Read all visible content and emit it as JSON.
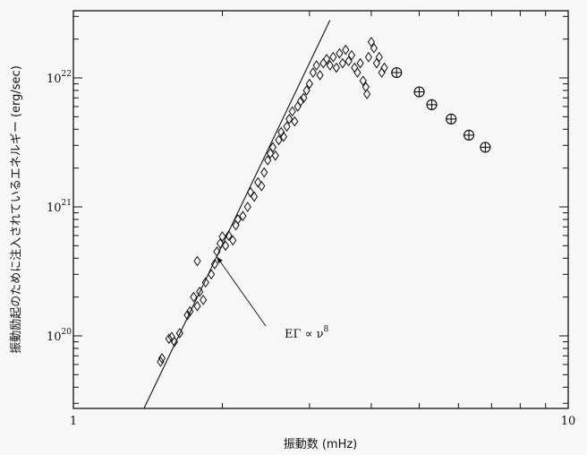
{
  "chart_data": {
    "type": "scatter",
    "title": "",
    "xlabel": "振動数 (mHz)",
    "ylabel": "振動励起のために注入されているエネルギー (erg/sec)",
    "xscale": "log",
    "yscale": "log",
    "xlim": [
      1,
      10
    ],
    "ylim": [
      3e+19,
      3e+22
    ],
    "x_ticks": [
      {
        "value": 1,
        "label": "1"
      },
      {
        "value": 10,
        "label": "10"
      }
    ],
    "y_ticks": [
      {
        "value": 1e+20,
        "base": "10",
        "exp": "20"
      },
      {
        "value": 1e+21,
        "base": "10",
        "exp": "21"
      },
      {
        "value": 1e+22,
        "base": "10",
        "exp": "22"
      }
    ],
    "grid": false,
    "series": [
      {
        "marker": "diamond",
        "points": [
          [
            1.5,
            6.3e+19
          ],
          [
            1.51,
            6.7e+19
          ],
          [
            1.56,
            9.5e+19
          ],
          [
            1.58,
            9.8e+19
          ],
          [
            1.6,
            9e+19
          ],
          [
            1.64,
            1.05e+20
          ],
          [
            1.7,
            1.45e+20
          ],
          [
            1.72,
            1.55e+20
          ],
          [
            1.75,
            2e+20
          ],
          [
            1.78,
            1.7e+20
          ],
          [
            1.8,
            2.2e+20
          ],
          [
            1.83,
            1.9e+20
          ],
          [
            1.85,
            2.6e+20
          ],
          [
            1.78,
            3.8e+20
          ],
          [
            1.9,
            3e+20
          ],
          [
            1.93,
            3.6e+20
          ],
          [
            1.95,
            4.5e+20
          ],
          [
            1.98,
            5.2e+20
          ],
          [
            2.0,
            5.9e+20
          ],
          [
            2.03,
            5e+20
          ],
          [
            2.06,
            6e+20
          ],
          [
            2.1,
            5.5e+20
          ],
          [
            2.13,
            7.2e+20
          ],
          [
            2.15,
            8e+20
          ],
          [
            2.2,
            8.5e+20
          ],
          [
            2.25,
            1e+21
          ],
          [
            2.28,
            1.3e+21
          ],
          [
            2.32,
            1.2e+21
          ],
          [
            2.36,
            1.55e+21
          ],
          [
            2.4,
            1.45e+21
          ],
          [
            2.43,
            1.85e+21
          ],
          [
            2.47,
            2.3e+21
          ],
          [
            2.5,
            2.6e+21
          ],
          [
            2.53,
            2.9e+21
          ],
          [
            2.56,
            2.5e+21
          ],
          [
            2.6,
            3.3e+21
          ],
          [
            2.63,
            3.8e+21
          ],
          [
            2.66,
            3.5e+21
          ],
          [
            2.7,
            4.2e+21
          ],
          [
            2.73,
            4.8e+21
          ],
          [
            2.77,
            5.5e+21
          ],
          [
            2.8,
            4.6e+21
          ],
          [
            2.84,
            6e+21
          ],
          [
            2.88,
            6.6e+21
          ],
          [
            2.92,
            7e+21
          ],
          [
            2.96,
            8e+21
          ],
          [
            3.0,
            9e+21
          ],
          [
            3.05,
            1.1e+22
          ],
          [
            3.1,
            1.25e+22
          ],
          [
            3.15,
            1.05e+22
          ],
          [
            3.2,
            1.3e+22
          ],
          [
            3.25,
            1.4e+22
          ],
          [
            3.3,
            1.25e+22
          ],
          [
            3.35,
            1.45e+22
          ],
          [
            3.4,
            1.2e+22
          ],
          [
            3.45,
            1.55e+22
          ],
          [
            3.5,
            1.3e+22
          ],
          [
            3.55,
            1.65e+22
          ],
          [
            3.6,
            1.35e+22
          ],
          [
            3.65,
            1.5e+22
          ],
          [
            3.7,
            1.2e+22
          ],
          [
            3.75,
            1.1e+22
          ],
          [
            3.8,
            1.3e+22
          ],
          [
            3.85,
            9.5e+21
          ],
          [
            3.9,
            8.5e+21
          ],
          [
            3.95,
            1.45e+22
          ],
          [
            4.0,
            1.9e+22
          ],
          [
            4.05,
            1.7e+22
          ],
          [
            4.1,
            1.3e+22
          ],
          [
            4.15,
            1.45e+22
          ],
          [
            4.2,
            1.1e+22
          ],
          [
            4.25,
            1.2e+22
          ],
          [
            3.92,
            7.5e+21
          ]
        ]
      },
      {
        "marker": "circle-plus",
        "points": [
          [
            4.5,
            1.1e+22
          ],
          [
            5.0,
            7.8e+21
          ],
          [
            5.3,
            6.2e+21
          ],
          [
            5.8,
            4.8e+21
          ],
          [
            6.3,
            3.6e+21
          ],
          [
            6.8,
            2.9e+21
          ]
        ]
      }
    ],
    "fit_line": {
      "label": "EΓ ∝ ν⁸",
      "slope": 8,
      "x": [
        1.38,
        3.3
      ],
      "y": [
        2.6e+19,
        2.8e+22
      ]
    },
    "annotations": [
      {
        "text_main": "EΓ ∝ ν",
        "text_sup": "8",
        "arrow_to": [
          1.95,
          4.1e+20
        ]
      }
    ]
  }
}
